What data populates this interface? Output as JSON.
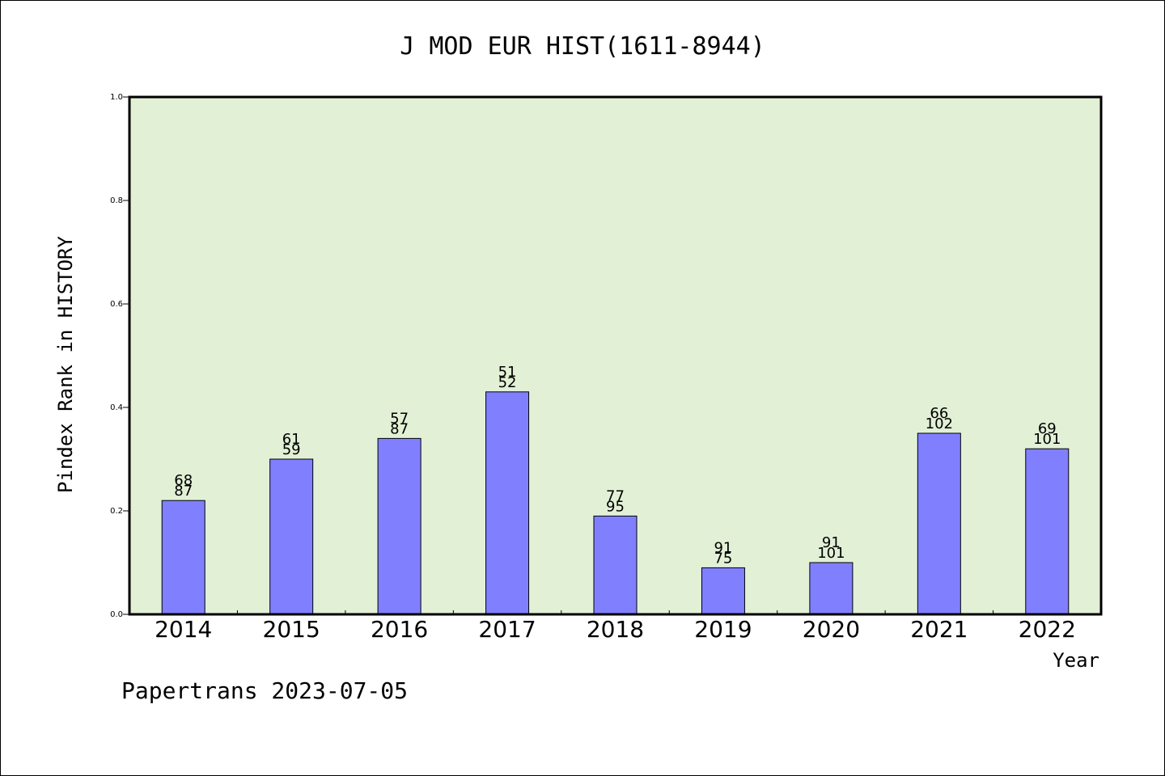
{
  "chart_data": {
    "type": "bar",
    "title": "J MOD EUR HIST(1611-8944)",
    "xlabel": "Year",
    "ylabel": "Pindex Rank in HISTORY",
    "ylim": [
      0,
      1.0
    ],
    "yticks": [
      "0.0",
      "0.2",
      "0.4",
      "0.6",
      "0.8",
      "1.0"
    ],
    "categories": [
      "2014",
      "2015",
      "2016",
      "2017",
      "2018",
      "2019",
      "2020",
      "2021",
      "2022"
    ],
    "values": [
      0.22,
      0.3,
      0.34,
      0.43,
      0.19,
      0.09,
      0.1,
      0.35,
      0.32
    ],
    "labels_top": [
      "68",
      "61",
      "57",
      "51",
      "77",
      "91",
      "91",
      "66",
      "69"
    ],
    "labels_bottom": [
      "87",
      "59",
      "87",
      "52",
      "95",
      "75",
      "101",
      "102",
      "101"
    ],
    "grid": false,
    "colors": {
      "plot_background": "#e2f0d6",
      "bar_fill": "#8080ff",
      "bar_stroke": "#000000"
    }
  },
  "footer": "Papertrans 2023-07-05"
}
